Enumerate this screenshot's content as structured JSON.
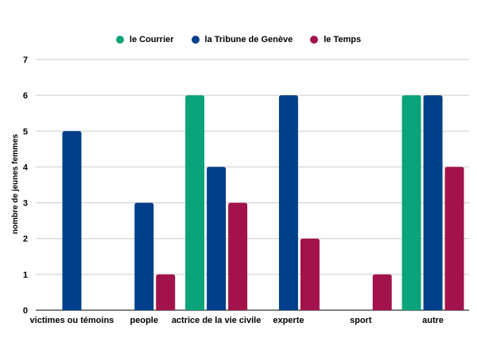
{
  "chart_data": {
    "type": "bar",
    "title": "",
    "xlabel": "",
    "ylabel": "nombre de jeunes femmes",
    "ylim": [
      0,
      7
    ],
    "yticks": [
      0,
      1,
      2,
      3,
      4,
      5,
      6,
      7
    ],
    "grid": true,
    "legend_position": "top",
    "categories": [
      "victimes ou témoins",
      "people",
      "actrice de la vie civile",
      "experte",
      "sport",
      "autre"
    ],
    "series": [
      {
        "name": "le Courrier",
        "color": "#0aa37a",
        "values": [
          0,
          0,
          6,
          0,
          0,
          6
        ]
      },
      {
        "name": "la Tribune de Genève",
        "color": "#003f8a",
        "values": [
          5,
          3,
          4,
          6,
          0,
          6
        ]
      },
      {
        "name": "le Temps",
        "color": "#a3134b",
        "values": [
          0,
          1,
          3,
          2,
          1,
          4
        ]
      }
    ]
  }
}
